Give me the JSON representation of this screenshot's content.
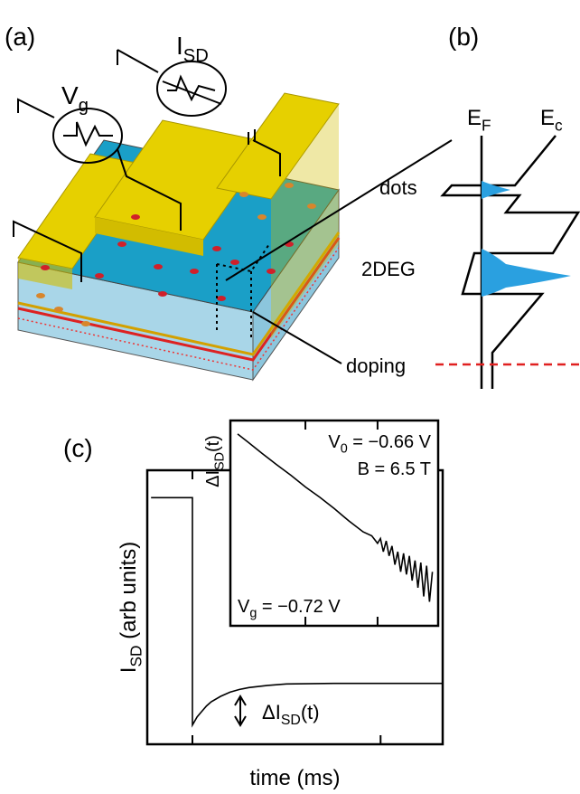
{
  "panel_labels": [
    "(a)",
    "(b)",
    "(c)"
  ],
  "schematic": {
    "current_label": {
      "main": "I",
      "sub": "SD"
    },
    "gate_label": {
      "main": "V",
      "sub": "g"
    }
  },
  "band_diagram": {
    "fermi_label": {
      "main": "E",
      "sub": "F"
    },
    "conduction_label": {
      "main": "E",
      "sub": "c"
    },
    "dots_label": "dots",
    "gas_label": "2DEG",
    "doping_label": "doping"
  },
  "chart_data": [
    {
      "type": "line",
      "xlabel": "time (ms)",
      "ylabel": {
        "main": "I",
        "sub": "SD",
        "post": " (arb units)"
      },
      "annotation": {
        "main": "ΔI",
        "sub": "SD",
        "post": "(t)"
      },
      "x": [
        45.6,
        50,
        50,
        50.5,
        51,
        51.5,
        52,
        53,
        54,
        55,
        56,
        58,
        60,
        65,
        70,
        76.6
      ],
      "values": [
        0.9,
        0.9,
        0.07,
        0.1,
        0.12,
        0.14,
        0.155,
        0.175,
        0.19,
        0.2,
        0.207,
        0.215,
        0.22,
        0.222,
        0.222,
        0.222
      ],
      "color": "#000000",
      "xlim": [
        45.2,
        76.6
      ],
      "ylim": [
        0,
        1
      ],
      "xticks": [
        50,
        70
      ]
    },
    {
      "type": "line",
      "ylabel": {
        "main": "ΔI",
        "sub": "SD",
        "post": "(t)"
      },
      "texts": [
        {
          "main": "V",
          "sub": "0",
          "post": " = −0.66 V"
        },
        {
          "main": "B = 6.5 T"
        },
        {
          "main": "V",
          "sub": "g",
          "post": " = −0.72 V"
        }
      ],
      "x": [
        50.3,
        51,
        52,
        53,
        54,
        55,
        56,
        57,
        58,
        59,
        59.6,
        60,
        60.2,
        60.4,
        60.6,
        60.8,
        61,
        61.2,
        61.4,
        61.6,
        61.8,
        62,
        62.2,
        62.4,
        62.6,
        62.8,
        63,
        63.2,
        63.4,
        63.6,
        63.8
      ],
      "values": [
        1.0,
        0.82,
        0.61,
        0.46,
        0.35,
        0.26,
        0.2,
        0.15,
        0.11,
        0.083,
        0.075,
        0.062,
        0.07,
        0.05,
        0.066,
        0.045,
        0.058,
        0.036,
        0.05,
        0.03,
        0.048,
        0.028,
        0.045,
        0.024,
        0.04,
        0.02,
        0.038,
        0.016,
        0.035,
        0.014,
        0.03
      ],
      "color": "#000000",
      "xlim": [
        49.8,
        64.2
      ],
      "ylim": [
        0.0076,
        1.41
      ],
      "log_y": true,
      "xticks": [
        55,
        60
      ]
    }
  ]
}
